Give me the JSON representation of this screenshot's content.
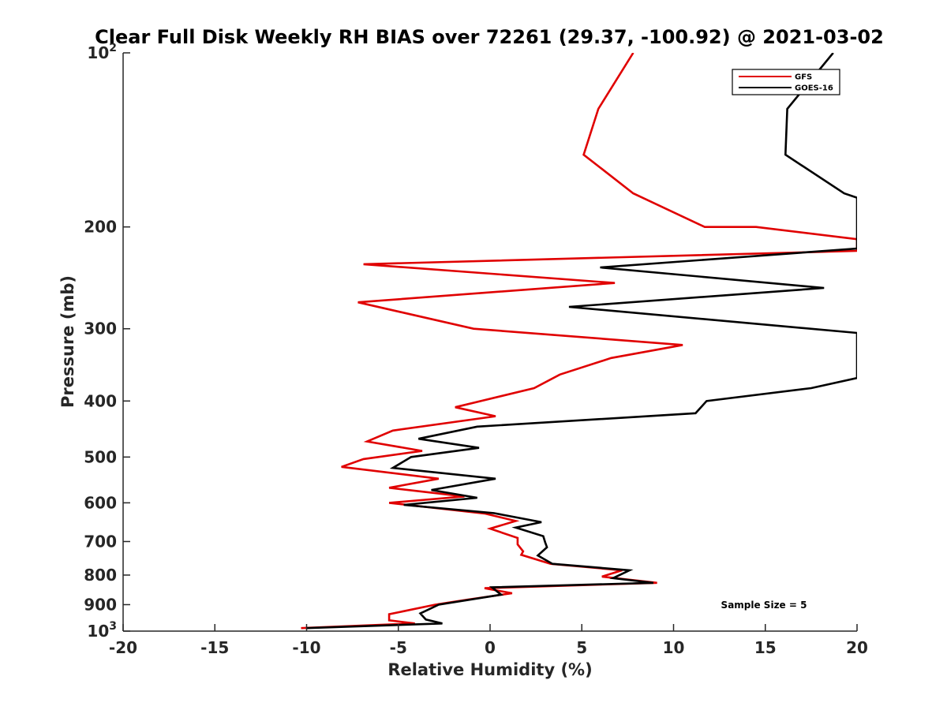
{
  "chart_data": {
    "type": "line",
    "title": "Clear Full Disk Weekly RH BIAS over 72261 (29.37, -100.92) @ 2021-03-02",
    "xlabel": "Relative Humidity (%)",
    "ylabel": "Pressure (mb)",
    "xlim": [
      -20,
      20
    ],
    "ylim": [
      100,
      1000
    ],
    "y_scale": "log",
    "y_reversed": true,
    "grid": false,
    "x_ticks": [
      -20,
      -15,
      -10,
      -5,
      0,
      5,
      10,
      15,
      20
    ],
    "x_tick_labels": [
      "-20",
      "-15",
      "-10",
      "-5",
      "0",
      "5",
      "10",
      "15",
      "20"
    ],
    "y_ticks": [
      100,
      200,
      300,
      400,
      500,
      600,
      700,
      800,
      900,
      1000
    ],
    "y_tick_labels": [
      {
        "base": "10",
        "sup": "2"
      },
      {
        "base": "200",
        "sup": ""
      },
      {
        "base": "300",
        "sup": ""
      },
      {
        "base": "400",
        "sup": ""
      },
      {
        "base": "500",
        "sup": ""
      },
      {
        "base": "600",
        "sup": ""
      },
      {
        "base": "700",
        "sup": ""
      },
      {
        "base": "800",
        "sup": ""
      },
      {
        "base": "900",
        "sup": ""
      },
      {
        "base": "10",
        "sup": "3"
      }
    ],
    "legend_position": "top-right",
    "annotation": "Sample Size = 5",
    "series": [
      {
        "name": "GFS",
        "color": "#e00000",
        "points": [
          [
            7.8,
            100
          ],
          [
            5.9,
            125
          ],
          [
            5.1,
            150
          ],
          [
            7.8,
            175
          ],
          [
            11.7,
            200
          ],
          [
            14.5,
            200
          ],
          [
            20,
            210
          ],
          [
            20,
            220
          ],
          [
            -6.9,
            232
          ],
          [
            6.8,
            250
          ],
          [
            -7.2,
            270
          ],
          [
            -0.9,
            300
          ],
          [
            10.5,
            320
          ],
          [
            6.6,
            337
          ],
          [
            3.8,
            360
          ],
          [
            2.4,
            380
          ],
          [
            -1.9,
            410
          ],
          [
            0.3,
            425
          ],
          [
            -5.3,
            450
          ],
          [
            -6.7,
            470
          ],
          [
            -3.7,
            488
          ],
          [
            -6.9,
            504
          ],
          [
            -8.1,
            520
          ],
          [
            -2.8,
            545
          ],
          [
            -5.5,
            565
          ],
          [
            -1.4,
            585
          ],
          [
            -5.5,
            600
          ],
          [
            -0.3,
            626
          ],
          [
            1.4,
            645
          ],
          [
            0.0,
            665
          ],
          [
            1.5,
            690
          ],
          [
            1.5,
            708
          ],
          [
            1.8,
            728
          ],
          [
            1.7,
            738
          ],
          [
            3.3,
            765
          ],
          [
            7.2,
            785
          ],
          [
            6.1,
            805
          ],
          [
            9.1,
            825
          ],
          [
            -0.3,
            843
          ],
          [
            1.2,
            860
          ],
          [
            -1.2,
            882
          ],
          [
            -3.0,
            900
          ],
          [
            -5.5,
            935
          ],
          [
            -5.5,
            958
          ],
          [
            -4.1,
            970
          ],
          [
            -10.3,
            988
          ]
        ]
      },
      {
        "name": "GOES-16",
        "color": "#000000",
        "points": [
          [
            18.7,
            100
          ],
          [
            16.2,
            125
          ],
          [
            16.1,
            150
          ],
          [
            19.3,
            175
          ],
          [
            20,
            178
          ],
          [
            20,
            218
          ],
          [
            6.0,
            235
          ],
          [
            18.2,
            255
          ],
          [
            4.3,
            275
          ],
          [
            20,
            305
          ],
          [
            20,
            365
          ],
          [
            17.5,
            380
          ],
          [
            11.8,
            400
          ],
          [
            11.2,
            420
          ],
          [
            -0.7,
            443
          ],
          [
            -3.9,
            465
          ],
          [
            -0.6,
            482
          ],
          [
            -4.3,
            500
          ],
          [
            -5.3,
            522
          ],
          [
            0.3,
            545
          ],
          [
            -3.2,
            570
          ],
          [
            -0.7,
            588
          ],
          [
            -4.7,
            605
          ],
          [
            0.2,
            625
          ],
          [
            2.8,
            648
          ],
          [
            1.4,
            662
          ],
          [
            2.9,
            685
          ],
          [
            3.0,
            702
          ],
          [
            3.1,
            716
          ],
          [
            2.6,
            740
          ],
          [
            3.4,
            765
          ],
          [
            7.6,
            785
          ],
          [
            6.7,
            810
          ],
          [
            8.9,
            825
          ],
          [
            0.1,
            840
          ],
          [
            0.6,
            865
          ],
          [
            -2.8,
            900
          ],
          [
            -3.8,
            932
          ],
          [
            -3.5,
            955
          ],
          [
            -2.6,
            970
          ],
          [
            -10.0,
            988
          ]
        ]
      }
    ]
  }
}
